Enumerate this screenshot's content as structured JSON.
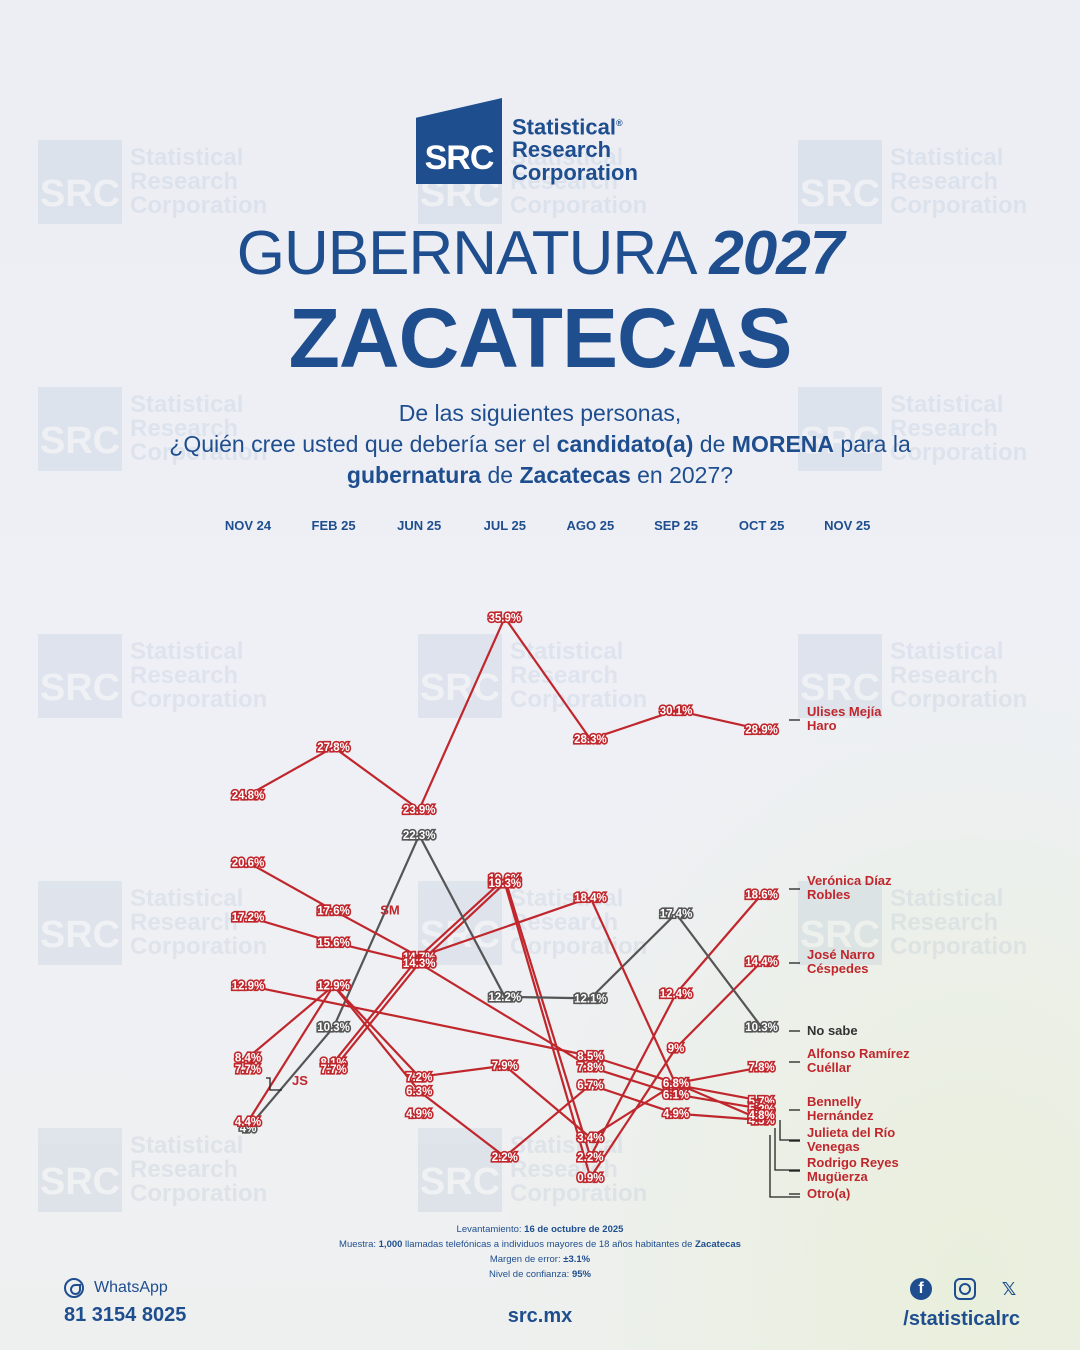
{
  "brand": {
    "logo_letters": "SRC",
    "line1": "Statistical",
    "line2": "Research",
    "line3": "Corporation",
    "mark": "®",
    "color": "#1f4e8f"
  },
  "title": {
    "part1": "GUBERNATURA ",
    "year": "2027",
    "state": "ZACATECAS"
  },
  "question": {
    "line1": "De las siguientes personas,",
    "l2a": "¿Quién cree usted que debería ser el ",
    "l2b": "candidato(a)",
    "l2c": " de ",
    "l2d": "MORENA",
    "l2e": " para la",
    "l3a": "gubernatura",
    "l3b": " de ",
    "l3c": "Zacatecas",
    "l3d": " en 2027?"
  },
  "chart_data": {
    "type": "line",
    "categories": [
      "NOV 24",
      "FEB 25",
      "JUN 25",
      "JUL 25",
      "AGO 25",
      "SEP 25",
      "OCT 25",
      "NOV 25"
    ],
    "series": [
      {
        "name": "Ulises Mejía Haro",
        "color": "#c0272d",
        "values": [
          24.8,
          27.8,
          23.9,
          35.9,
          28.3,
          30.1,
          28.9,
          null
        ]
      },
      {
        "name": "Verónica Díaz Robles",
        "color": "#c0272d",
        "values": [
          null,
          8.1,
          14.7,
          19.6,
          2.2,
          12.4,
          18.6,
          null
        ]
      },
      {
        "name": "José Narro Céspedes",
        "color": "#c0272d",
        "values": [
          null,
          7.7,
          14.3,
          19.3,
          0.9,
          9,
          14.4,
          null
        ]
      },
      {
        "name": "No sabe",
        "color": "#555555",
        "values": [
          4,
          10.3,
          22.3,
          12.2,
          12.1,
          17.4,
          10.3,
          null
        ]
      },
      {
        "name": "Alfonso Ramírez Cuéllar",
        "color": "#c0272d",
        "values": [
          12.9,
          null,
          null,
          null,
          8.5,
          6.8,
          7.8,
          null
        ]
      },
      {
        "name": "Bennelly Hernández",
        "color": "#c0272d",
        "values": [
          20.6,
          17.6,
          14.7,
          null,
          18.4,
          6.7,
          5.7,
          null
        ]
      },
      {
        "name": "Julieta del Río Venegas",
        "color": "#c0272d",
        "values": [
          17.2,
          15.6,
          14.3,
          null,
          7.8,
          6.1,
          5.2,
          null
        ]
      },
      {
        "name": "Rodrigo Reyes Mugüerza",
        "color": "#c0272d",
        "values": [
          8.4,
          12.9,
          6.3,
          2.2,
          6.7,
          4.9,
          4.5,
          null
        ]
      },
      {
        "name": "Otro(a)",
        "color": "#c0272d",
        "values": [
          4.4,
          12.9,
          7.2,
          7.9,
          3.4,
          6.8,
          4.5,
          null
        ]
      },
      {
        "name": "SM",
        "color": "#c0272d",
        "values": [
          null,
          17.6,
          null,
          null,
          null,
          null,
          null,
          null
        ]
      },
      {
        "name": "JS",
        "color": "#c0272d",
        "values": [
          7.7,
          null,
          null,
          null,
          null,
          null,
          null,
          null
        ]
      }
    ],
    "extra_labels": [
      "4.9%",
      "4.8%",
      "4.7%",
      "5.9%"
    ],
    "end_labels": [
      {
        "text1": "Ulises Mejía",
        "text2": "Haro",
        "color": "#c0272d"
      },
      {
        "text1": "Verónica Díaz",
        "text2": "Robles",
        "color": "#c0272d"
      },
      {
        "text1": "José Narro",
        "text2": "Céspedes",
        "color": "#c0272d"
      },
      {
        "text1": "No sabe",
        "text2": "",
        "color": "#333333"
      },
      {
        "text1": "Alfonso Ramírez",
        "text2": "Cuéllar",
        "color": "#c0272d"
      },
      {
        "text1": "Bennelly",
        "text2": "Hernández",
        "color": "#c0272d"
      },
      {
        "text1": "Julieta del Río",
        "text2": "Venegas",
        "color": "#c0272d"
      },
      {
        "text1": "Rodrigo Reyes",
        "text2": "Mugüerza",
        "color": "#c0272d"
      },
      {
        "text1": "Otro(a)",
        "text2": "",
        "color": "#c0272d"
      }
    ],
    "inline_tags": [
      "SM",
      "JS"
    ],
    "ylim": [
      0,
      40
    ],
    "grid": false,
    "legend": "right"
  },
  "footnotes": {
    "l1a": "Levantamiento: ",
    "l1b": "16 de octubre de 2025",
    "l2a": "Muestra: ",
    "l2b": "1,000",
    "l2c": " llamadas telefónicas a individuos mayores de 18 años habitantes de ",
    "l2d": "Zacatecas",
    "l3a": "Margen de error: ",
    "l3b": "±3.1%",
    "l4a": "Nivel de confianza: ",
    "l4b": "95%"
  },
  "footer": {
    "whatsapp_label": "WhatsApp",
    "whatsapp_number": "81 3154 8025",
    "site": "src.mx",
    "social_handle": "/statisticalrc",
    "icons": [
      "whatsapp-icon",
      "facebook-icon",
      "instagram-icon",
      "x-icon"
    ],
    "fb_glyph": "f",
    "x_glyph": "𝕏"
  }
}
